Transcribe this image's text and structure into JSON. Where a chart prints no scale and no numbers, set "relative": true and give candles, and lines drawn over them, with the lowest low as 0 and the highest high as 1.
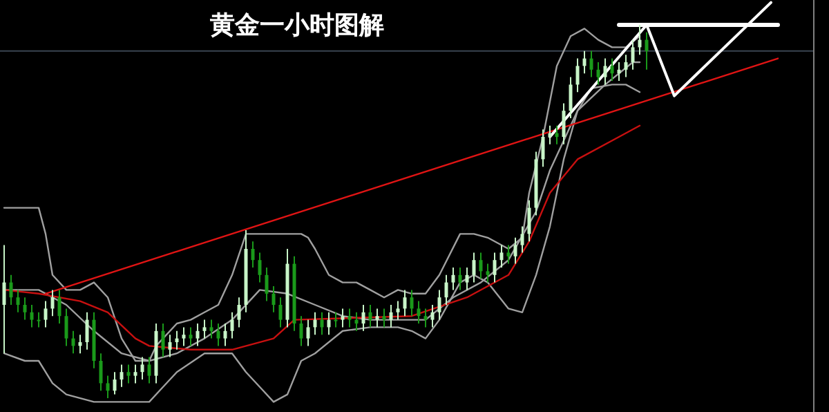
{
  "chart_data": {
    "type": "candlestick",
    "relative": true,
    "title": "黄金一小时图解",
    "categories": [
      null,
      null,
      null,
      null,
      null,
      null,
      null,
      null,
      null,
      null,
      null,
      null,
      null,
      null,
      null,
      null,
      null,
      null,
      null,
      null,
      null,
      null,
      null,
      null,
      null,
      null,
      null,
      null,
      null,
      null,
      null,
      null,
      null,
      null,
      null,
      null,
      null,
      null,
      null,
      null,
      null,
      null,
      null,
      null,
      null,
      null,
      null,
      null,
      null,
      null,
      null,
      null,
      null,
      null,
      null,
      null,
      null,
      null,
      null,
      null,
      null,
      null,
      null,
      null,
      null,
      null,
      null,
      null,
      null,
      null,
      null,
      null,
      null,
      null,
      null,
      null,
      null,
      null,
      null,
      null,
      null,
      null,
      null,
      null,
      null,
      null,
      null,
      null,
      null,
      null,
      null,
      null,
      null,
      null,
      null,
      null,
      null,
      null,
      null,
      null,
      null,
      null,
      null,
      null,
      null,
      null,
      null,
      null,
      null,
      null,
      null,
      null,
      null
    ],
    "ohlc": [
      [
        0.25,
        0.41,
        0.12,
        0.31
      ],
      [
        0.31,
        0.33,
        0.25,
        0.27
      ],
      [
        0.27,
        0.29,
        0.23,
        0.25
      ],
      [
        0.25,
        0.27,
        0.21,
        0.23
      ],
      [
        0.23,
        0.25,
        0.19,
        0.21
      ],
      [
        0.21,
        0.23,
        0.19,
        0.21
      ],
      [
        0.21,
        0.26,
        0.19,
        0.24
      ],
      [
        0.24,
        0.29,
        0.22,
        0.27
      ],
      [
        0.27,
        0.29,
        0.2,
        0.22
      ],
      [
        0.22,
        0.24,
        0.14,
        0.16
      ],
      [
        0.16,
        0.18,
        0.12,
        0.14
      ],
      [
        0.14,
        0.17,
        0.12,
        0.15
      ],
      [
        0.15,
        0.23,
        0.13,
        0.21
      ],
      [
        0.21,
        0.23,
        0.08,
        0.1
      ],
      [
        0.1,
        0.12,
        0.02,
        0.04
      ],
      [
        0.04,
        0.06,
        0.0,
        0.02
      ],
      [
        0.02,
        0.07,
        0.01,
        0.05
      ],
      [
        0.05,
        0.09,
        0.03,
        0.07
      ],
      [
        0.07,
        0.09,
        0.04,
        0.06
      ],
      [
        0.06,
        0.09,
        0.04,
        0.07
      ],
      [
        0.07,
        0.11,
        0.05,
        0.09
      ],
      [
        0.09,
        0.11,
        0.04,
        0.06
      ],
      [
        0.06,
        0.2,
        0.04,
        0.18
      ],
      [
        0.18,
        0.2,
        0.11,
        0.13
      ],
      [
        0.13,
        0.17,
        0.11,
        0.15
      ],
      [
        0.15,
        0.18,
        0.13,
        0.16
      ],
      [
        0.16,
        0.19,
        0.14,
        0.17
      ],
      [
        0.17,
        0.19,
        0.14,
        0.16
      ],
      [
        0.16,
        0.2,
        0.14,
        0.18
      ],
      [
        0.18,
        0.21,
        0.16,
        0.19
      ],
      [
        0.19,
        0.21,
        0.16,
        0.18
      ],
      [
        0.18,
        0.2,
        0.14,
        0.16
      ],
      [
        0.16,
        0.2,
        0.14,
        0.18
      ],
      [
        0.18,
        0.23,
        0.16,
        0.21
      ],
      [
        0.21,
        0.27,
        0.19,
        0.25
      ],
      [
        0.25,
        0.45,
        0.23,
        0.4
      ],
      [
        0.4,
        0.42,
        0.35,
        0.37
      ],
      [
        0.37,
        0.39,
        0.31,
        0.33
      ],
      [
        0.33,
        0.35,
        0.26,
        0.28
      ],
      [
        0.28,
        0.3,
        0.23,
        0.25
      ],
      [
        0.25,
        0.27,
        0.19,
        0.21
      ],
      [
        0.21,
        0.4,
        0.19,
        0.36
      ],
      [
        0.36,
        0.38,
        0.18,
        0.2
      ],
      [
        0.2,
        0.22,
        0.14,
        0.16
      ],
      [
        0.16,
        0.21,
        0.14,
        0.19
      ],
      [
        0.19,
        0.23,
        0.17,
        0.21
      ],
      [
        0.21,
        0.23,
        0.17,
        0.19
      ],
      [
        0.19,
        0.23,
        0.17,
        0.21
      ],
      [
        0.21,
        0.23,
        0.19,
        0.21
      ],
      [
        0.21,
        0.24,
        0.19,
        0.22
      ],
      [
        0.22,
        0.24,
        0.19,
        0.21
      ],
      [
        0.21,
        0.23,
        0.18,
        0.2
      ],
      [
        0.2,
        0.25,
        0.18,
        0.23
      ],
      [
        0.23,
        0.25,
        0.19,
        0.21
      ],
      [
        0.21,
        0.24,
        0.19,
        0.22
      ],
      [
        0.22,
        0.24,
        0.19,
        0.21
      ],
      [
        0.21,
        0.25,
        0.19,
        0.23
      ],
      [
        0.23,
        0.26,
        0.21,
        0.24
      ],
      [
        0.24,
        0.29,
        0.22,
        0.27
      ],
      [
        0.27,
        0.29,
        0.22,
        0.24
      ],
      [
        0.24,
        0.26,
        0.2,
        0.22
      ],
      [
        0.22,
        0.24,
        0.19,
        0.21
      ],
      [
        0.21,
        0.25,
        0.19,
        0.23
      ],
      [
        0.23,
        0.29,
        0.21,
        0.27
      ],
      [
        0.27,
        0.33,
        0.25,
        0.31
      ],
      [
        0.31,
        0.35,
        0.29,
        0.33
      ],
      [
        0.33,
        0.35,
        0.29,
        0.31
      ],
      [
        0.31,
        0.35,
        0.29,
        0.33
      ],
      [
        0.33,
        0.39,
        0.31,
        0.37
      ],
      [
        0.37,
        0.39,
        0.32,
        0.34
      ],
      [
        0.34,
        0.36,
        0.31,
        0.33
      ],
      [
        0.33,
        0.39,
        0.31,
        0.37
      ],
      [
        0.37,
        0.41,
        0.35,
        0.39
      ],
      [
        0.39,
        0.41,
        0.36,
        0.38
      ],
      [
        0.38,
        0.43,
        0.36,
        0.41
      ],
      [
        0.41,
        0.46,
        0.39,
        0.44
      ],
      [
        0.44,
        0.53,
        0.42,
        0.51
      ],
      [
        0.51,
        0.66,
        0.49,
        0.64
      ],
      [
        0.64,
        0.72,
        0.62,
        0.7
      ],
      [
        0.7,
        0.73,
        0.68,
        0.71
      ],
      [
        0.71,
        0.73,
        0.68,
        0.7
      ],
      [
        0.7,
        0.79,
        0.68,
        0.77
      ],
      [
        0.77,
        0.86,
        0.75,
        0.84
      ],
      [
        0.84,
        0.91,
        0.82,
        0.89
      ],
      [
        0.89,
        0.93,
        0.87,
        0.91
      ],
      [
        0.91,
        0.93,
        0.86,
        0.88
      ],
      [
        0.88,
        0.9,
        0.84,
        0.86
      ],
      [
        0.86,
        0.91,
        0.84,
        0.89
      ],
      [
        0.89,
        0.91,
        0.85,
        0.87
      ],
      [
        0.87,
        0.9,
        0.85,
        0.88
      ],
      [
        0.88,
        0.92,
        0.86,
        0.9
      ],
      [
        0.9,
        0.96,
        0.88,
        0.94
      ],
      [
        0.94,
        1.0,
        0.92,
        0.96
      ],
      [
        0.96,
        0.98,
        0.88,
        0.93
      ],
      null,
      null,
      null,
      null,
      null,
      null,
      null,
      null,
      null,
      null,
      null,
      null,
      null,
      null,
      null,
      null,
      null,
      null,
      null
    ],
    "colors": [
      "#c8f5c8",
      "#1a9a1a",
      "#1a9a1a",
      "#1a9a1a",
      "#1a9a1a",
      "#1a9a1a",
      "#c8f5c8",
      "#c8f5c8",
      "#1a9a1a",
      "#1a9a1a",
      "#1a9a1a",
      "#c8f5c8",
      "#c8f5c8",
      "#1a9a1a",
      "#1a9a1a",
      "#1a9a1a",
      "#c8f5c8",
      "#c8f5c8",
      "#1a9a1a",
      "#c8f5c8",
      "#c8f5c8",
      "#1a9a1a",
      "#c8f5c8",
      "#1a9a1a",
      "#c8f5c8",
      "#c8f5c8",
      "#c8f5c8",
      "#1a9a1a",
      "#c8f5c8",
      "#c8f5c8",
      "#1a9a1a",
      "#1a9a1a",
      "#c8f5c8",
      "#c8f5c8",
      "#c8f5c8",
      "#c8f5c8",
      "#1a9a1a",
      "#1a9a1a",
      "#1a9a1a",
      "#1a9a1a",
      "#1a9a1a",
      "#c8f5c8",
      "#1a9a1a",
      "#1a9a1a",
      "#c8f5c8",
      "#c8f5c8",
      "#1a9a1a",
      "#c8f5c8",
      "#1a9a1a",
      "#c8f5c8",
      "#1a9a1a",
      "#1a9a1a",
      "#c8f5c8",
      "#1a9a1a",
      "#c8f5c8",
      "#1a9a1a",
      "#c8f5c8",
      "#c8f5c8",
      "#c8f5c8",
      "#1a9a1a",
      "#1a9a1a",
      "#1a9a1a",
      "#c8f5c8",
      "#c8f5c8",
      "#c8f5c8",
      "#c8f5c8",
      "#1a9a1a",
      "#c8f5c8",
      "#c8f5c8",
      "#1a9a1a",
      "#1a9a1a",
      "#c8f5c8",
      "#c8f5c8",
      "#1a9a1a",
      "#c8f5c8",
      "#c8f5c8",
      "#c8f5c8",
      "#c8f5c8",
      "#c8f5c8",
      "#c8f5c8",
      "#1a9a1a",
      "#c8f5c8",
      "#c8f5c8",
      "#c8f5c8",
      "#c8f5c8",
      "#1a9a1a",
      "#1a9a1a",
      "#c8f5c8",
      "#1a9a1a",
      "#c8f5c8",
      "#c8f5c8",
      "#c8f5c8",
      "#c8f5c8",
      "#1a9a1a",
      null,
      null,
      null,
      null,
      null,
      null,
      null,
      null,
      null,
      null,
      null,
      null,
      null,
      null,
      null,
      null,
      null,
      null,
      null
    ],
    "series": [
      {
        "type": "line",
        "color": "#a0a0a0",
        "values": [
          0.51,
          null,
          null,
          0.51,
          null,
          0.51,
          0.44,
          0.33,
          null,
          0.29,
          null,
          0.29,
          null,
          0.31,
          null,
          0.27,
          null,
          0.16,
          null,
          0.1,
          null,
          0.1,
          0.14,
          null,
          null,
          0.2,
          null,
          0.21,
          null,
          0.23,
          null,
          0.25,
          null,
          0.33,
          null,
          0.44,
          null,
          0.44,
          null,
          0.44,
          null,
          null,
          null,
          0.44,
          0.43,
          0.4,
          null,
          0.33,
          null,
          0.31,
          null,
          0.31,
          null,
          0.29,
          null,
          0.27,
          null,
          0.29,
          null,
          0.28,
          null,
          0.28,
          null,
          0.33,
          null,
          null,
          0.44,
          null,
          0.44,
          null,
          0.43,
          null,
          null,
          0.4,
          null,
          0.43,
          0.55,
          null,
          0.7,
          null,
          0.89,
          null,
          0.97,
          null,
          0.99,
          null,
          0.96,
          null,
          0.94,
          null,
          0.94,
          null,
          0.97,
          null,
          null,
          null,
          null,
          null,
          null,
          null,
          null,
          null,
          null,
          null,
          null,
          null,
          null,
          null,
          null,
          null,
          null,
          null,
          null
        ]
      },
      {
        "type": "line",
        "color": "#a0a0a0",
        "values": [
          0.29,
          null,
          null,
          null,
          null,
          0.29,
          null,
          null,
          null,
          0.25,
          null,
          null,
          null,
          0.18,
          null,
          null,
          null,
          0.12,
          null,
          null,
          null,
          0.1,
          null,
          null,
          null,
          0.12,
          null,
          null,
          null,
          0.16,
          null,
          null,
          null,
          0.21,
          null,
          null,
          null,
          0.29,
          null,
          null,
          null,
          0.28,
          null,
          null,
          null,
          0.25,
          null,
          null,
          null,
          0.22,
          null,
          null,
          null,
          0.21,
          null,
          null,
          null,
          0.21,
          null,
          null,
          null,
          0.21,
          null,
          null,
          null,
          0.27,
          null,
          null,
          null,
          0.31,
          null,
          null,
          null,
          0.37,
          null,
          null,
          null,
          0.5,
          null,
          0.61,
          null,
          null,
          null,
          0.77,
          null,
          null,
          null,
          0.84,
          null,
          null,
          null,
          0.9,
          0.9,
          null,
          null,
          null,
          null,
          null,
          null,
          null,
          null,
          null,
          null,
          null,
          null,
          null,
          null,
          null,
          null,
          null,
          null,
          null,
          null
        ]
      },
      {
        "type": "line",
        "color": "#a0a0a0",
        "values": [
          0.12,
          null,
          null,
          0.1,
          null,
          0.1,
          0.07,
          0.04,
          null,
          0.01,
          null,
          null,
          null,
          -0.01,
          null,
          null,
          null,
          -0.01,
          null,
          null,
          null,
          -0.01,
          null,
          0.03,
          null,
          0.07,
          null,
          null,
          null,
          0.12,
          null,
          null,
          null,
          0.12,
          null,
          0.07,
          null,
          0.03,
          null,
          -0.01,
          null,
          0.01,
          null,
          0.1,
          null,
          0.12,
          null,
          null,
          null,
          0.18,
          null,
          null,
          null,
          0.19,
          null,
          null,
          null,
          0.19,
          null,
          0.18,
          null,
          0.16,
          null,
          0.21,
          null,
          null,
          0.31,
          null,
          0.33,
          null,
          0.31,
          null,
          null,
          0.24,
          null,
          0.23,
          null,
          0.33,
          null,
          0.46,
          null,
          0.64,
          null,
          0.77,
          null,
          0.83,
          null,
          null,
          0.84,
          null,
          0.84,
          null,
          0.82,
          null,
          null,
          null,
          null,
          null,
          null,
          null,
          null,
          null,
          null,
          null,
          null,
          null,
          null,
          null,
          null,
          null,
          null,
          null,
          null
        ]
      },
      {
        "type": "line",
        "color": "#c81010",
        "values": [
          0.29,
          null,
          null,
          null,
          null,
          0.28,
          null,
          null,
          null,
          null,
          null,
          0.26,
          null,
          null,
          null,
          0.23,
          null,
          null,
          null,
          0.16,
          null,
          0.14,
          null,
          null,
          null,
          null,
          null,
          0.13,
          null,
          null,
          null,
          null,
          null,
          0.13,
          null,
          null,
          null,
          null,
          null,
          0.16,
          null,
          null,
          0.21,
          null,
          null,
          null,
          null,
          null,
          null,
          null,
          null,
          null,
          null,
          null,
          null,
          null,
          null,
          null,
          null,
          0.22,
          null,
          null,
          null,
          null,
          null,
          null,
          null,
          0.27,
          null,
          null,
          null,
          null,
          null,
          0.33,
          null,
          null,
          0.42,
          null,
          null,
          0.55,
          null,
          null,
          null,
          0.64,
          null,
          null,
          null,
          null,
          null,
          0.7,
          null,
          null,
          0.73,
          null,
          null,
          null,
          null,
          null,
          null,
          null,
          null,
          null,
          null,
          null,
          null,
          null,
          null,
          null,
          null,
          null,
          null,
          null,
          null
        ]
      },
      {
        "type": "line",
        "color": "#e01414",
        "values": [
          null,
          null,
          null,
          null,
          null,
          null,
          0.28,
          null,
          null,
          null,
          null,
          null,
          null,
          null,
          null,
          null,
          null,
          null,
          null,
          null,
          null,
          null,
          null,
          null,
          null,
          null,
          null,
          null,
          null,
          null,
          null,
          null,
          null,
          null,
          null,
          null,
          null,
          null,
          null,
          null,
          null,
          null,
          null,
          null,
          null,
          null,
          null,
          null,
          null,
          null,
          null,
          null,
          null,
          null,
          null,
          null,
          null,
          null,
          null,
          null,
          null,
          null,
          null,
          null,
          null,
          null,
          null,
          null,
          null,
          null,
          null,
          null,
          null,
          null,
          null,
          null,
          null,
          null,
          null,
          null,
          null,
          null,
          null,
          null,
          null,
          null,
          null,
          null,
          null,
          null,
          null,
          null,
          null,
          null,
          null,
          null,
          null,
          null,
          null,
          null,
          null,
          null,
          null,
          null,
          null,
          null,
          null,
          null,
          null,
          null,
          null,
          null,
          0.91
        ]
      },
      {
        "type": "line",
        "color": "#ffffff",
        "values": [
          null,
          null,
          null,
          null,
          null,
          null,
          null,
          null,
          null,
          null,
          null,
          null,
          null,
          null,
          null,
          null,
          null,
          null,
          null,
          null,
          null,
          null,
          null,
          null,
          null,
          null,
          null,
          null,
          null,
          null,
          null,
          null,
          null,
          null,
          null,
          null,
          null,
          null,
          null,
          null,
          null,
          null,
          null,
          null,
          null,
          null,
          null,
          null,
          null,
          null,
          null,
          null,
          null,
          null,
          null,
          null,
          null,
          null,
          null,
          null,
          null,
          null,
          null,
          null,
          null,
          null,
          null,
          null,
          null,
          null,
          null,
          null,
          null,
          null,
          null,
          null,
          null,
          null,
          null,
          0.7,
          null,
          null,
          null,
          null,
          null,
          null,
          null,
          null,
          null,
          null,
          null,
          null,
          null,
          1.0,
          null,
          null,
          null,
          0.81,
          null,
          null,
          null,
          null,
          null,
          null,
          null,
          null,
          null,
          null,
          null,
          null,
          null,
          1.06,
          null
        ]
      },
      {
        "type": "line",
        "color": "#ffffff",
        "values": [
          null,
          null,
          null,
          null,
          null,
          null,
          null,
          null,
          null,
          null,
          null,
          null,
          null,
          null,
          null,
          null,
          null,
          null,
          null,
          null,
          null,
          null,
          null,
          null,
          null,
          null,
          null,
          null,
          null,
          null,
          null,
          null,
          null,
          null,
          null,
          null,
          null,
          null,
          null,
          null,
          null,
          null,
          null,
          null,
          null,
          null,
          null,
          null,
          null,
          null,
          null,
          null,
          null,
          null,
          null,
          null,
          null,
          null,
          null,
          null,
          null,
          null,
          null,
          null,
          null,
          null,
          null,
          null,
          null,
          null,
          null,
          null,
          null,
          null,
          null,
          null,
          null,
          null,
          null,
          null,
          null,
          null,
          null,
          null,
          null,
          null,
          null,
          null,
          null,
          1.0,
          null,
          null,
          null,
          null,
          null,
          null,
          null,
          null,
          null,
          null,
          null,
          null,
          null,
          null,
          null,
          null,
          null,
          null,
          null,
          null,
          null,
          null,
          1.0
        ]
      }
    ],
    "ref_lines": [
      {
        "axis": "y",
        "value": 0.93,
        "color": "#3a4450"
      }
    ]
  }
}
